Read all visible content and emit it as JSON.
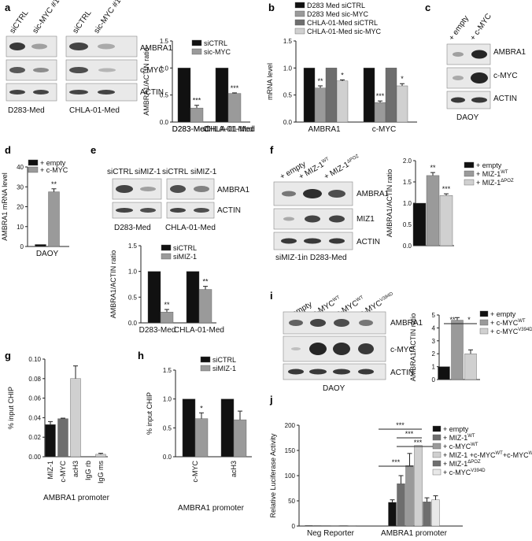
{
  "colors": {
    "black": "#111111",
    "dark_gray": "#6e6e6e",
    "mid_gray": "#9a9a9a",
    "light_gray": "#d0d0d0",
    "very_light": "#e8e8e8"
  },
  "panels": {
    "a": {
      "letter": "a",
      "lanes": [
        "siCTRL",
        "sic-MYC #1",
        "siCTRL",
        "sic-MYC #1"
      ],
      "bands": [
        "AMBRA1",
        "c-MYC",
        "ACTIN"
      ],
      "cell_lines": [
        "D283-Med",
        "CHLA-01-Med"
      ]
    },
    "b": {
      "letter": "b"
    },
    "c": {
      "letter": "c",
      "lanes": [
        "+ empty",
        "+ c-MYC"
      ],
      "bands": [
        "AMBRA1",
        "c-MYC",
        "ACTIN"
      ],
      "cell_line": "DAOY"
    },
    "d": {
      "letter": "d"
    },
    "e": {
      "letter": "e",
      "lanes": [
        "siCTRL",
        "siMIZ-1",
        "siCTRL",
        "siMIZ-1"
      ],
      "bands": [
        "AMBRA1",
        "ACTIN"
      ],
      "cell_lines": [
        "D283-Med",
        "CHLA-01-Med"
      ]
    },
    "f": {
      "letter": "f",
      "lanes": [
        "+ empty",
        "+ MIZ-1",
        "+ MIZ-1"
      ],
      "lane_sups": [
        "",
        "WT",
        "ΔPOZ"
      ],
      "bands": [
        "AMBRA1",
        "MIZ1",
        "ACTIN"
      ],
      "caption": "siMIZ-1in D283-Med"
    },
    "g": {
      "letter": "g"
    },
    "h": {
      "letter": "h"
    },
    "i": {
      "letter": "i",
      "lanes": [
        "+ empty",
        "+ c-MYC",
        "+ c-MYC",
        "+ c-MYC"
      ],
      "lane_sups": [
        "",
        "WT",
        "WT",
        "V394D"
      ],
      "bands": [
        "AMBRA1",
        "c-MYC",
        "ACTIN"
      ],
      "cell_line": "DAOY"
    },
    "j": {
      "letter": "j"
    }
  },
  "chart_data": [
    {
      "id": "a",
      "type": "bar",
      "categories": [
        "D283-Med",
        "CHLA-01-Med"
      ],
      "ylabel": "AMBRA1/ACTIN ratio",
      "ylim": [
        0,
        1.5
      ],
      "yticks": [
        "0.0",
        "0.5",
        "1.0",
        "1.5"
      ],
      "series": [
        {
          "name": "siCTRL",
          "values": [
            1.0,
            1.0
          ],
          "errors": [
            0,
            0
          ]
        },
        {
          "name": "sic-MYC",
          "values": [
            0.26,
            0.53
          ],
          "errors": [
            0.05,
            0.01
          ]
        }
      ],
      "stars": [
        [
          "",
          "***"
        ],
        [
          "",
          "***"
        ]
      ],
      "legend": "top-right"
    },
    {
      "id": "b",
      "type": "bar",
      "categories": [
        "AMBRA1",
        "c-MYC"
      ],
      "ylabel": "mRNA level",
      "ylim": [
        0,
        1.5
      ],
      "yticks": [
        "0.0",
        "0.5",
        "1.0",
        "1.5"
      ],
      "series": [
        {
          "name": "D283 Med siCTRL",
          "values": [
            1.0,
            1.0
          ],
          "errors": [
            0,
            0
          ]
        },
        {
          "name": "D283 Med sic-MYC",
          "values": [
            0.63,
            0.36
          ],
          "errors": [
            0.04,
            0.03
          ]
        },
        {
          "name": "CHLA-01-Med siCTRL",
          "values": [
            1.0,
            1.0
          ],
          "errors": [
            0,
            0
          ]
        },
        {
          "name": "CHLA-01-Med sic-MYC",
          "values": [
            0.76,
            0.67
          ],
          "errors": [
            0.02,
            0.04
          ]
        }
      ],
      "stars": [
        [
          "",
          "**",
          "",
          "*"
        ],
        [
          "",
          "***",
          "",
          "*"
        ]
      ],
      "legend": "top"
    },
    {
      "id": "d",
      "type": "bar",
      "categories": [
        "DAOY"
      ],
      "ylabel": "AMBRA1 mRNA level",
      "ylim": [
        0,
        40
      ],
      "yticks": [
        "0",
        "10",
        "20",
        "30",
        "40"
      ],
      "series": [
        {
          "name": "+ empty",
          "values": [
            1.0
          ],
          "errors": [
            0
          ]
        },
        {
          "name": "+ c-MYC",
          "values": [
            27.5
          ],
          "errors": [
            1.5
          ]
        }
      ],
      "stars": [
        [
          "",
          "**"
        ]
      ],
      "legend": "top-left"
    },
    {
      "id": "e",
      "type": "bar",
      "categories": [
        "D283-Med",
        "CHLA-01-Med"
      ],
      "ylabel": "AMBRA1/ACTIN ratio",
      "ylim": [
        0,
        1.5
      ],
      "yticks": [
        "0.0",
        "0.5",
        "1.0",
        "1.5"
      ],
      "series": [
        {
          "name": "siCTRL",
          "values": [
            1.0,
            1.0
          ],
          "errors": [
            0,
            0
          ]
        },
        {
          "name": "siMIZ-1",
          "values": [
            0.21,
            0.65
          ],
          "errors": [
            0.05,
            0.06
          ]
        }
      ],
      "stars": [
        [
          "",
          "**"
        ],
        [
          "",
          "**"
        ]
      ],
      "legend": "top-right"
    },
    {
      "id": "f",
      "type": "bar",
      "categories": [
        ""
      ],
      "ylabel": "AMBRA1/ACTIN ratio",
      "ylim": [
        0,
        2.0
      ],
      "yticks": [
        "0.0",
        "0.5",
        "1.0",
        "1.5",
        "2.0"
      ],
      "series": [
        {
          "name": "+ empty",
          "values": [
            1.0
          ],
          "errors": [
            0
          ]
        },
        {
          "name": "+ MIZ-1",
          "sup": "WT",
          "values": [
            1.65
          ],
          "errors": [
            0.07
          ]
        },
        {
          "name": "+ MIZ-1",
          "sup": "ΔPOZ",
          "values": [
            1.18
          ],
          "errors": [
            0.04
          ]
        }
      ],
      "stars": [
        [
          "",
          "**",
          "***"
        ]
      ],
      "legend": "right"
    },
    {
      "id": "g",
      "type": "bar",
      "categories": [
        "MIZ-1",
        "c-MYC",
        "acH3",
        "IgG rb",
        "IgG ms"
      ],
      "xlabel": "AMBRA1 promoter",
      "ylabel": "% input CHIP",
      "ylim": [
        0,
        0.1
      ],
      "yticks": [
        "0.00",
        "0.02",
        "0.04",
        "0.06",
        "0.08",
        "0.10"
      ],
      "series": [
        {
          "name": "",
          "values": [
            0.033,
            0.039,
            0.08,
            0.0,
            0.0025
          ],
          "errors": [
            0.003,
            0.0005,
            0.013,
            0,
            0.001
          ]
        }
      ]
    },
    {
      "id": "h",
      "type": "bar",
      "categories": [
        "c-MYC",
        "acH3"
      ],
      "xlabel": "AMBRA1 promoter",
      "ylabel": "% input CHIP",
      "ylim": [
        0,
        1.5
      ],
      "yticks": [
        "0.0",
        "0.5",
        "1.0",
        "1.5"
      ],
      "series": [
        {
          "name": "siCTRL",
          "values": [
            1.0,
            1.0
          ],
          "errors": [
            0,
            0
          ]
        },
        {
          "name": "siMIZ-1",
          "values": [
            0.66,
            0.64
          ],
          "errors": [
            0.1,
            0.15
          ]
        }
      ],
      "stars": [
        [
          "",
          "*"
        ],
        [
          "",
          ""
        ]
      ],
      "legend": "top-right"
    },
    {
      "id": "i",
      "type": "bar",
      "categories": [
        ""
      ],
      "ylabel": "AMBRA1/ACTIN ratio",
      "ylim": [
        0,
        5
      ],
      "yticks": [
        "0",
        "1",
        "2",
        "3",
        "4",
        "5"
      ],
      "series": [
        {
          "name": "+ empty",
          "values": [
            1.0
          ],
          "errors": [
            0
          ]
        },
        {
          "name": "+ c-MYC",
          "sup": "WT",
          "values": [
            4.6
          ],
          "errors": [
            0.2
          ]
        },
        {
          "name": "+ c-MYC",
          "sup": "V394D",
          "values": [
            2.0
          ],
          "errors": [
            0.3
          ]
        }
      ],
      "significance": [
        "**",
        "*"
      ],
      "legend": "right"
    },
    {
      "id": "j",
      "type": "bar",
      "categories": [
        "Neg Reporter",
        "AMBRA1 promoter"
      ],
      "ylabel": "Relative Luciferase Activity",
      "ylim": [
        0,
        200
      ],
      "yticks": [
        "0",
        "50",
        "100",
        "150",
        "200"
      ],
      "series": [
        {
          "name": "+ empty",
          "values": [
            1,
            47
          ],
          "errors": [
            0,
            5
          ]
        },
        {
          "name": "+ MIZ-1",
          "sup": "WT",
          "values": [
            1,
            84
          ],
          "errors": [
            0,
            16
          ]
        },
        {
          "name": "+ c-MYC",
          "sup": "WT",
          "values": [
            1,
            120
          ],
          "errors": [
            0,
            24
          ]
        },
        {
          "name": "+ MIZ-1 +c-MYC",
          "sup": "WT",
          "sup2": "WT",
          "values": [
            1,
            160
          ],
          "errors": [
            0,
            0
          ]
        },
        {
          "name": "+ MIZ-1",
          "sup": "ΔPOZ",
          "values": [
            1,
            48
          ],
          "errors": [
            0,
            8
          ]
        },
        {
          "name": "+ c-MYC",
          "sup": "V394D",
          "values": [
            1,
            52
          ],
          "errors": [
            0,
            8
          ]
        }
      ],
      "significance": [
        "***",
        "***",
        "***",
        "***"
      ],
      "legend": "right"
    }
  ]
}
